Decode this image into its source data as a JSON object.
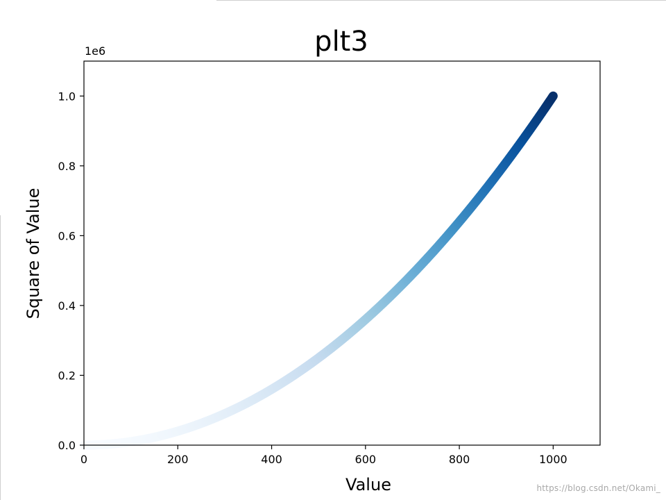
{
  "chart_data": {
    "type": "scatter",
    "title": "plt3",
    "xlabel": "Value",
    "ylabel": "Square of Value",
    "y_offset_label": "1e6",
    "xlim": [
      0,
      1100
    ],
    "ylim": [
      0,
      1100000
    ],
    "x_ticks": [
      0,
      200,
      400,
      600,
      800,
      1000
    ],
    "x_tick_labels": [
      "0",
      "200",
      "400",
      "600",
      "800",
      "1000"
    ],
    "y_ticks": [
      0,
      200000,
      400000,
      600000,
      800000,
      1000000
    ],
    "y_tick_labels": [
      "0.0",
      "0.2",
      "0.4",
      "0.6",
      "0.8",
      "1.0"
    ],
    "grid": false,
    "series": [
      {
        "x_start": 1,
        "x_end": 1000,
        "x_step": 1,
        "y_function": "x^2",
        "colormap": "Blues",
        "colormap_stops": [
          "#f7fbff",
          "#deebf7",
          "#c6dbef",
          "#9ecae1",
          "#6baed6",
          "#4292c6",
          "#2171b5",
          "#08519c",
          "#08306b"
        ]
      }
    ]
  },
  "watermark": "https://blog.csdn.net/Okami_"
}
